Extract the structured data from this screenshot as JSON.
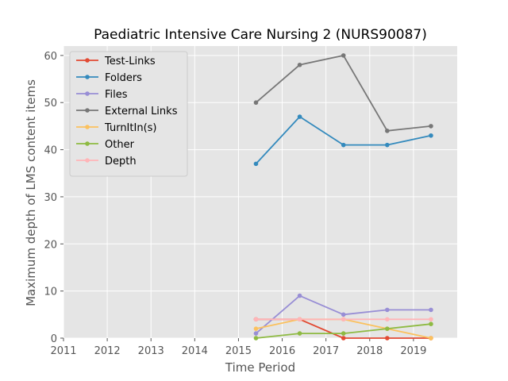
{
  "chart_data": {
    "type": "line",
    "title": "Paediatric Intensive Care Nursing 2 (NURS90087)",
    "xlabel": "Time Period",
    "ylabel": "Maximum depth of LMS content items",
    "xlim": [
      2011,
      2020
    ],
    "ylim": [
      0,
      62
    ],
    "xticks": [
      "2011",
      "2012",
      "2013",
      "2014",
      "2015",
      "2016",
      "2017",
      "2018",
      "2019"
    ],
    "yticks": [
      "0",
      "10",
      "20",
      "30",
      "40",
      "50",
      "60"
    ],
    "grid": true,
    "legend_position": "top-left",
    "x": [
      2015.4,
      2016.4,
      2017.4,
      2018.4,
      2019.4
    ],
    "series": [
      {
        "name": "Test-Links",
        "color": "#e24a33",
        "values": [
          4,
          4,
          0,
          0,
          0
        ]
      },
      {
        "name": "Folders",
        "color": "#348abd",
        "values": [
          37,
          47,
          41,
          41,
          43
        ]
      },
      {
        "name": "Files",
        "color": "#988ed5",
        "values": [
          1,
          9,
          5,
          6,
          6
        ]
      },
      {
        "name": "External Links",
        "color": "#777777",
        "values": [
          50,
          58,
          60,
          44,
          45
        ]
      },
      {
        "name": "TurnItIn(s)",
        "color": "#fbc15e",
        "values": [
          2,
          4,
          4,
          2,
          0
        ]
      },
      {
        "name": "Other",
        "color": "#8eba42",
        "values": [
          0,
          1,
          1,
          2,
          3
        ]
      },
      {
        "name": "Depth",
        "color": "#ffb5b8",
        "values": [
          4,
          4,
          4,
          4,
          4
        ]
      }
    ]
  }
}
